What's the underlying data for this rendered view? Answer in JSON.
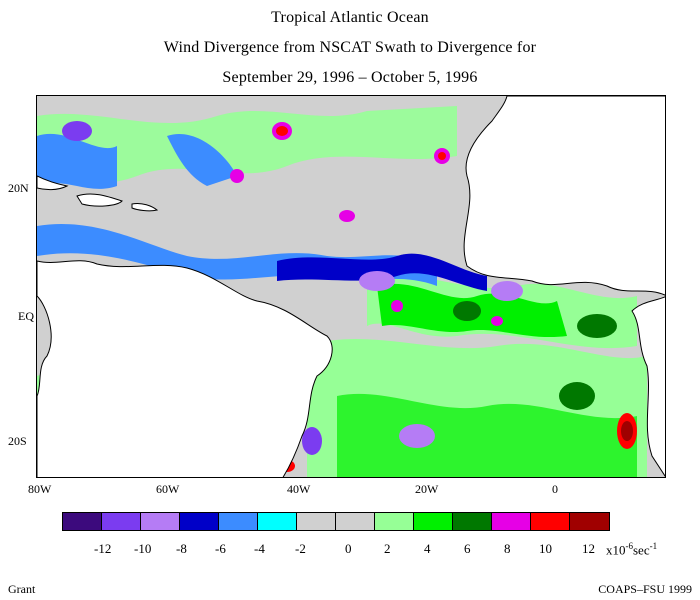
{
  "title": {
    "line1": "Tropical Atlantic Ocean",
    "line2": "Wind Divergence from NSCAT Swath to Divergence for",
    "line3": "September 29, 1996 – October 5, 1996"
  },
  "axes": {
    "lon_labels": [
      "80W",
      "60W",
      "40W",
      "20W",
      "0"
    ],
    "lat_labels": [
      "20N",
      "EQ",
      "20S"
    ]
  },
  "colorbar": {
    "colors": [
      "#3c0a7d",
      "#7b3cf0",
      "#b57cf5",
      "#0000c8",
      "#3c8cff",
      "#00ffff",
      "#d0d0d0",
      "#d0d0d0",
      "#96ff96",
      "#00f000",
      "#007800",
      "#e600e6",
      "#ff0000",
      "#a00000"
    ],
    "tick_labels": [
      "-12",
      "-10",
      "-8",
      "-6",
      "-4",
      "-2",
      "0",
      "2",
      "4",
      "6",
      "8",
      "10",
      "12"
    ],
    "units_text": "x10",
    "units_exp": "-6",
    "units_suffix": "sec",
    "units_suffix_exp": "-1"
  },
  "footer": {
    "left": "Grant",
    "right": "COAPS–FSU 1999"
  }
}
